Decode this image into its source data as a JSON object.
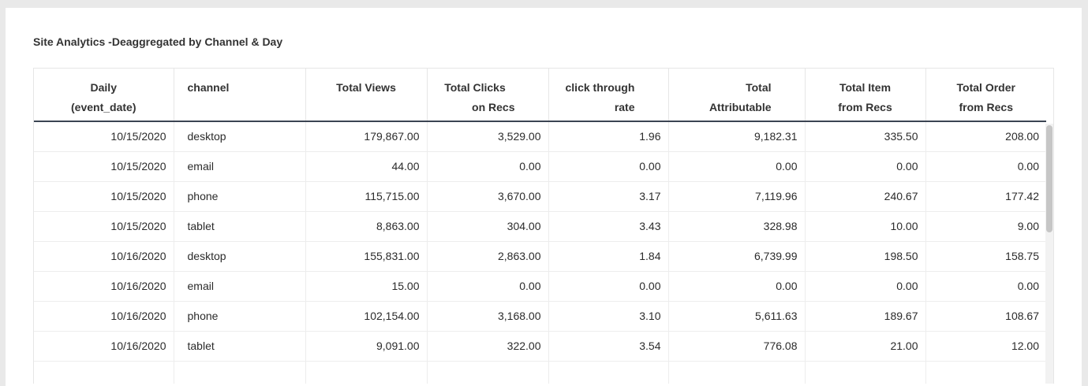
{
  "title": "Site Analytics -Deaggregated by Channel & Day",
  "columns": [
    {
      "line1": "Daily",
      "line2": "(event_date)",
      "align": "c"
    },
    {
      "line1": "channel",
      "line2": "",
      "align": "l"
    },
    {
      "line1": "Total Views",
      "line2": "",
      "align": "c"
    },
    {
      "line1": "Total Clicks",
      "line2": "on Recs",
      "align": "c"
    },
    {
      "line1": "click through",
      "line2": "rate",
      "align": "c"
    },
    {
      "line1": "Total",
      "line2": "Attributable",
      "align": "c"
    },
    {
      "line1": "Total Item",
      "line2": "from Recs",
      "align": "c"
    },
    {
      "line1": "Total Order",
      "line2": "from Recs",
      "align": "c"
    }
  ],
  "rows": [
    [
      "10/15/2020",
      "desktop",
      "179,867.00",
      "3,529.00",
      "1.96",
      "9,182.31",
      "335.50",
      "208.00"
    ],
    [
      "10/15/2020",
      "email",
      "44.00",
      "0.00",
      "0.00",
      "0.00",
      "0.00",
      "0.00"
    ],
    [
      "10/15/2020",
      "phone",
      "115,715.00",
      "3,670.00",
      "3.17",
      "7,119.96",
      "240.67",
      "177.42"
    ],
    [
      "10/15/2020",
      "tablet",
      "8,863.00",
      "304.00",
      "3.43",
      "328.98",
      "10.00",
      "9.00"
    ],
    [
      "10/16/2020",
      "desktop",
      "155,831.00",
      "2,863.00",
      "1.84",
      "6,739.99",
      "198.50",
      "158.75"
    ],
    [
      "10/16/2020",
      "email",
      "15.00",
      "0.00",
      "0.00",
      "0.00",
      "0.00",
      "0.00"
    ],
    [
      "10/16/2020",
      "phone",
      "102,154.00",
      "3,168.00",
      "3.10",
      "5,611.63",
      "189.67",
      "108.67"
    ],
    [
      "10/16/2020",
      "tablet",
      "9,091.00",
      "322.00",
      "3.54",
      "776.08",
      "21.00",
      "12.00"
    ]
  ]
}
